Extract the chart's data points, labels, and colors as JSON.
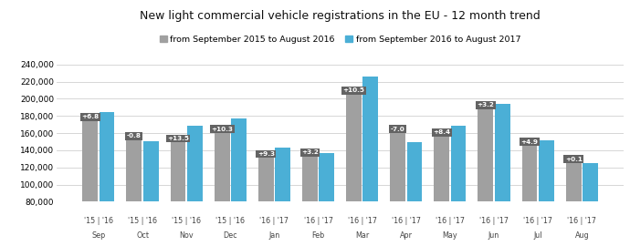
{
  "title": "New light commercial vehicle registrations in the EU - 12 month trend",
  "legend": [
    "from September 2015 to August 2016",
    "from September 2016 to August 2017"
  ],
  "months": [
    "Sep",
    "Oct",
    "Nov",
    "Dec",
    "Jan",
    "Feb",
    "Mar",
    "Apr",
    "May",
    "Jun",
    "Jul",
    "Aug"
  ],
  "year_labels_top": [
    "'15 | '16",
    "'15 | '16",
    "'15 | '16",
    "'15 | '16",
    "'16 | '17",
    "'16 | '17",
    "'16 | '17",
    "'16 | '17",
    "'16 | '17",
    "'16 | '17",
    "'16 | '17",
    "'16 | '17"
  ],
  "series1": [
    174000,
    152000,
    149000,
    160000,
    131000,
    133000,
    205000,
    160000,
    156000,
    188000,
    145000,
    125000
  ],
  "series2": [
    185000,
    151000,
    169000,
    177000,
    143000,
    137000,
    226000,
    149000,
    169000,
    194000,
    152000,
    125500
  ],
  "annotations": [
    "+6.8",
    "-0.8",
    "+13.5",
    "+10.3",
    "+9.3",
    "+3.2",
    "+10.5",
    "-7.0",
    "+8.4",
    "+3.2",
    "+4.9",
    "+0.1"
  ],
  "color_series1": "#a0a0a0",
  "color_series2": "#4bafd6",
  "annotation_bg": "#636363",
  "annotation_fg": "#ffffff",
  "ylim": [
    80000,
    252000
  ],
  "yticks": [
    80000,
    100000,
    120000,
    140000,
    160000,
    180000,
    200000,
    220000,
    240000
  ],
  "background_color": "#ffffff",
  "grid_color": "#d0d0d0"
}
